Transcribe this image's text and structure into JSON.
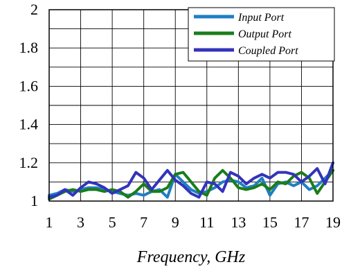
{
  "chart_data": {
    "type": "line",
    "xlabel": "Frequency, GHz",
    "ylabel": "",
    "title": "",
    "xlim": [
      1,
      19
    ],
    "ylim": [
      1,
      2
    ],
    "x_ticks": [
      1,
      3,
      5,
      7,
      9,
      11,
      13,
      15,
      17,
      19
    ],
    "x_tick_labels": [
      "1",
      "3",
      "5",
      "7",
      "9",
      "11",
      "13",
      "15",
      "17",
      "19"
    ],
    "y_ticks": [
      1,
      1.2,
      1.4,
      1.6,
      1.8,
      2
    ],
    "y_tick_labels": [
      "1",
      "1.2",
      "1.4",
      "1.6",
      "1.8",
      "2"
    ],
    "grid": true,
    "legend_position": "top-right",
    "series": [
      {
        "name": "Input Port",
        "color": "#1f7fc4",
        "x": [
          1,
          1.5,
          2,
          2.5,
          3,
          3.5,
          4,
          4.5,
          5,
          5.5,
          6,
          6.5,
          7,
          7.5,
          8,
          8.5,
          9,
          9.5,
          10,
          10.5,
          11,
          11.5,
          12,
          12.5,
          13,
          13.5,
          14,
          14.5,
          15,
          15.5,
          16,
          16.5,
          17,
          17.5,
          18,
          18.5,
          19
        ],
        "values": [
          1.03,
          1.04,
          1.06,
          1.05,
          1.06,
          1.07,
          1.07,
          1.06,
          1.05,
          1.04,
          1.03,
          1.04,
          1.03,
          1.05,
          1.06,
          1.02,
          1.14,
          1.1,
          1.06,
          1.04,
          1.05,
          1.07,
          1.1,
          1.11,
          1.1,
          1.07,
          1.08,
          1.12,
          1.03,
          1.09,
          1.1,
          1.08,
          1.1,
          1.06,
          1.08,
          1.12,
          1.16
        ]
      },
      {
        "name": "Output Port",
        "color": "#1a7d1a",
        "x": [
          1,
          1.5,
          2,
          2.5,
          3,
          3.5,
          4,
          4.5,
          5,
          5.5,
          6,
          6.5,
          7,
          7.5,
          8,
          8.5,
          9,
          9.5,
          10,
          10.5,
          11,
          11.5,
          12,
          12.5,
          13,
          13.5,
          14,
          14.5,
          15,
          15.5,
          16,
          16.5,
          17,
          17.5,
          18,
          18.5,
          19
        ],
        "values": [
          1.01,
          1.03,
          1.05,
          1.06,
          1.05,
          1.06,
          1.06,
          1.05,
          1.06,
          1.05,
          1.02,
          1.05,
          1.09,
          1.05,
          1.05,
          1.07,
          1.14,
          1.15,
          1.1,
          1.05,
          1.03,
          1.12,
          1.16,
          1.12,
          1.07,
          1.06,
          1.07,
          1.09,
          1.06,
          1.1,
          1.09,
          1.13,
          1.15,
          1.12,
          1.04,
          1.1,
          1.16
        ]
      },
      {
        "name": "Coupled Port",
        "color": "#3333bb",
        "x": [
          1,
          1.5,
          2,
          2.5,
          3,
          3.5,
          4,
          4.5,
          5,
          5.5,
          6,
          6.5,
          7,
          7.5,
          8,
          8.5,
          9,
          9.5,
          10,
          10.5,
          11,
          11.5,
          12,
          12.5,
          13,
          13.5,
          14,
          14.5,
          15,
          15.5,
          16,
          16.5,
          17,
          17.5,
          18,
          18.5,
          19
        ],
        "values": [
          1.02,
          1.03,
          1.06,
          1.03,
          1.07,
          1.1,
          1.09,
          1.07,
          1.04,
          1.06,
          1.08,
          1.15,
          1.12,
          1.06,
          1.11,
          1.16,
          1.11,
          1.08,
          1.04,
          1.02,
          1.1,
          1.09,
          1.05,
          1.15,
          1.13,
          1.09,
          1.12,
          1.14,
          1.12,
          1.15,
          1.15,
          1.14,
          1.1,
          1.13,
          1.17,
          1.09,
          1.2
        ]
      }
    ]
  }
}
